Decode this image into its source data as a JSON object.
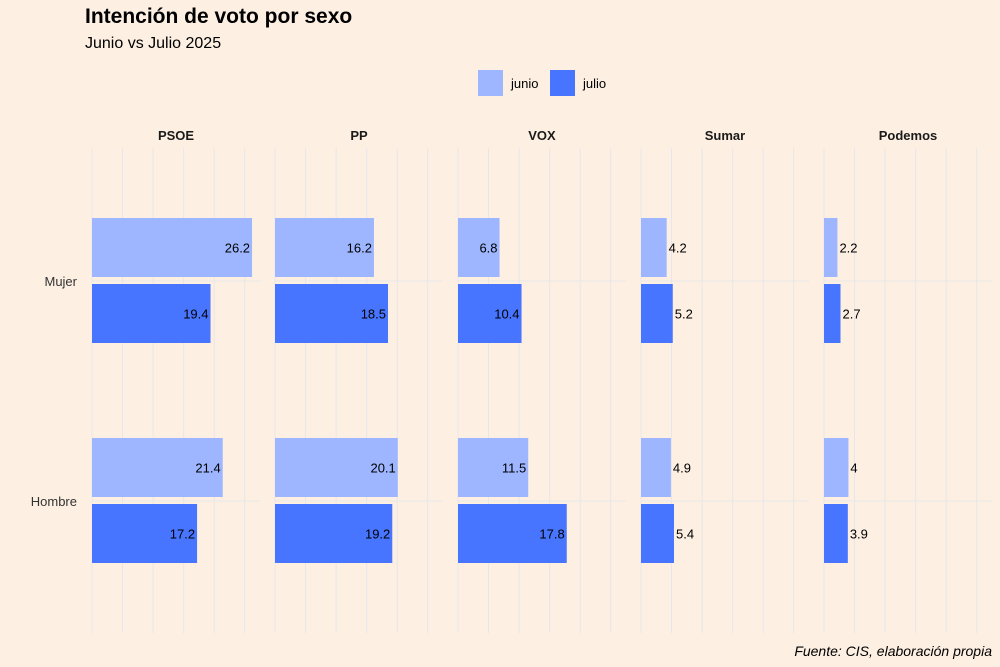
{
  "title": "Intención de voto por sexo",
  "subtitle": "Junio vs Julio 2025",
  "caption": "Fuente: CIS, elaboración propia",
  "colors": {
    "junio": "#9db6ff",
    "julio": "#4875ff",
    "background": "#fdf0e3",
    "grid": "#e6e6ea"
  },
  "chart_data": {
    "type": "bar",
    "orientation": "horizontal",
    "facets": [
      "PSOE",
      "PP",
      "VOX",
      "Sumar",
      "Podemos"
    ],
    "categories": [
      "Mujer",
      "Hombre"
    ],
    "legend": {
      "position": "top",
      "entries": [
        "junio",
        "julio"
      ]
    },
    "xlim": [
      0,
      27.5
    ],
    "grid": true,
    "series": [
      {
        "name": "junio",
        "values": {
          "PSOE": {
            "Mujer": 26.2,
            "Hombre": 21.4
          },
          "PP": {
            "Mujer": 16.2,
            "Hombre": 20.1
          },
          "VOX": {
            "Mujer": 6.8,
            "Hombre": 11.5
          },
          "Sumar": {
            "Mujer": 4.2,
            "Hombre": 4.9
          },
          "Podemos": {
            "Mujer": 2.2,
            "Hombre": 4
          }
        }
      },
      {
        "name": "julio",
        "values": {
          "PSOE": {
            "Mujer": 19.4,
            "Hombre": 17.2
          },
          "PP": {
            "Mujer": 18.5,
            "Hombre": 19.2
          },
          "VOX": {
            "Mujer": 10.4,
            "Hombre": 17.8
          },
          "Sumar": {
            "Mujer": 5.2,
            "Hombre": 5.4
          },
          "Podemos": {
            "Mujer": 2.7,
            "Hombre": 3.9
          }
        }
      }
    ]
  }
}
